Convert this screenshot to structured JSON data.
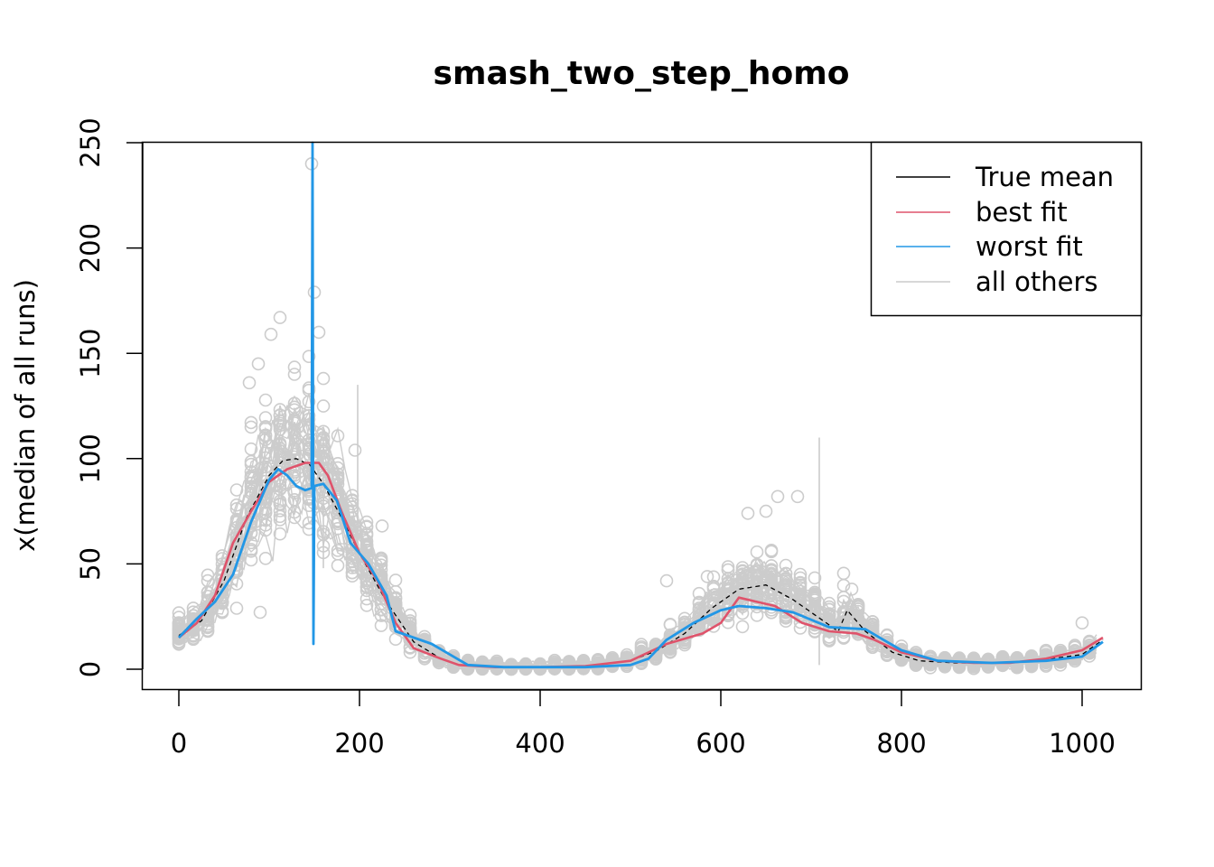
{
  "chart_data": {
    "type": "scatter",
    "title": "smash_two_step_homo",
    "xlabel": "",
    "ylabel": "x(median of all runs)",
    "xlim": [
      -50,
      1075
    ],
    "ylim": [
      -10,
      250
    ],
    "x_ticks": [
      0,
      200,
      400,
      600,
      800,
      1000
    ],
    "y_ticks": [
      0,
      50,
      100,
      150,
      200,
      250
    ],
    "legend_position": "top-right",
    "legend": [
      {
        "label": "True mean",
        "color": "#000000"
      },
      {
        "label": "best fit",
        "color": "#DF536B"
      },
      {
        "label": "worst fit",
        "color": "#2297E6"
      },
      {
        "label": "all others",
        "color": "#CCCCCC"
      }
    ],
    "colors": {
      "true_mean": "#000000",
      "best_fit": "#DF536B",
      "worst_fit": "#2297E6",
      "others": "#CCCCCC"
    },
    "series": [
      {
        "key": "true_mean",
        "x": [
          0,
          25,
          50,
          75,
          100,
          115,
          130,
          145,
          160,
          180,
          200,
          230,
          260,
          290,
          310,
          350,
          400,
          450,
          500,
          530,
          560,
          590,
          620,
          650,
          680,
          710,
          730,
          740,
          760,
          790,
          820,
          860,
          900,
          950,
          1000,
          1023
        ],
        "values": [
          16,
          23,
          42,
          72,
          92,
          99,
          100,
          97,
          88,
          72,
          55,
          32,
          13,
          5,
          2,
          1,
          1,
          1.5,
          4,
          9,
          17,
          29,
          38,
          40,
          33,
          24,
          18,
          28,
          18,
          8,
          4,
          3,
          3,
          4,
          7,
          14
        ]
      },
      {
        "key": "best_fit",
        "x": [
          0,
          20,
          40,
          60,
          80,
          100,
          120,
          140,
          155,
          165,
          180,
          200,
          220,
          240,
          260,
          290,
          310,
          350,
          400,
          450,
          500,
          540,
          580,
          600,
          620,
          640,
          660,
          690,
          720,
          750,
          770,
          800,
          840,
          880,
          920,
          960,
          1000,
          1023
        ],
        "values": [
          15,
          22,
          35,
          60,
          75,
          89,
          95,
          98,
          98,
          92,
          75,
          55,
          42,
          22,
          10,
          5,
          2,
          1,
          1,
          1.5,
          4,
          12,
          17,
          22,
          34,
          32,
          30,
          22,
          18,
          17,
          14,
          8,
          4,
          3,
          3,
          5,
          9,
          15
        ]
      },
      {
        "key": "worst_fit",
        "x": [
          0,
          20,
          40,
          60,
          80,
          100,
          110,
          120,
          130,
          140,
          147,
          148,
          149,
          150,
          160,
          175,
          190,
          210,
          230,
          240,
          260,
          280,
          300,
          320,
          360,
          400,
          450,
          500,
          520,
          540,
          570,
          600,
          620,
          650,
          680,
          720,
          760,
          780,
          800,
          840,
          900,
          960,
          1000,
          1023
        ],
        "values": [
          15,
          24,
          32,
          45,
          70,
          90,
          95,
          92,
          87,
          85,
          86,
          250,
          12,
          87,
          88,
          80,
          60,
          50,
          35,
          18,
          15,
          12,
          7,
          2,
          1,
          1,
          1,
          2,
          5,
          14,
          22,
          28,
          30,
          29,
          27,
          20,
          19,
          14,
          9,
          4,
          3,
          4,
          6,
          13
        ]
      }
    ],
    "annotations": []
  }
}
